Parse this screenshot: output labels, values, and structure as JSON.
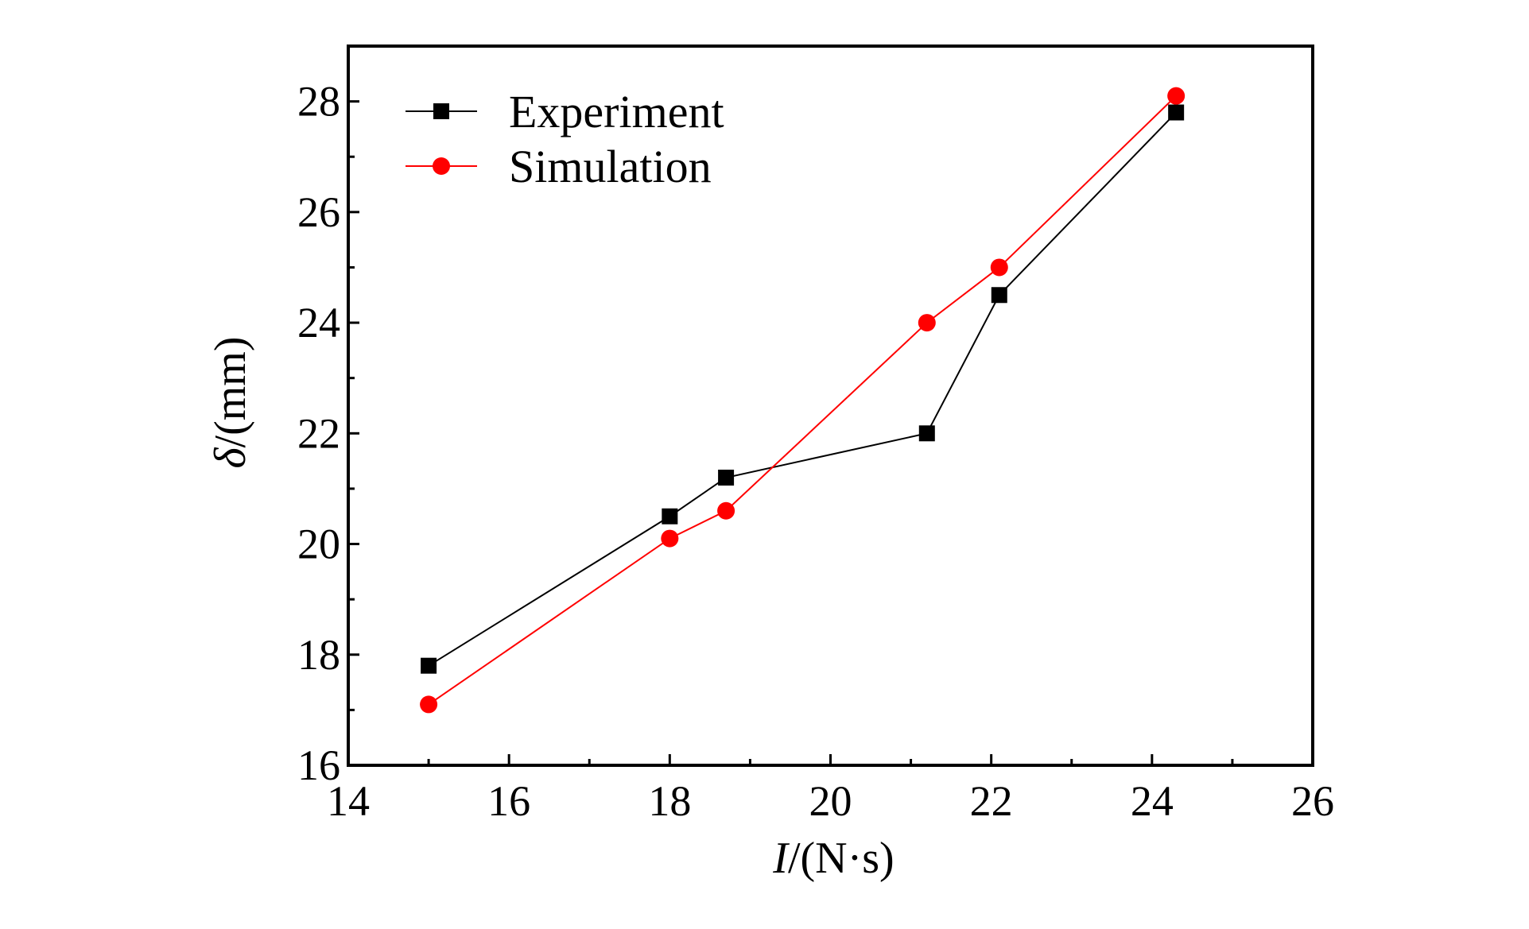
{
  "chart_data": {
    "type": "line",
    "title": "",
    "xlabel": {
      "var": "I",
      "unit": "/(N·s)"
    },
    "ylabel": {
      "var": "δ",
      "unit": "/(mm)"
    },
    "xlim": [
      14,
      26
    ],
    "ylim": [
      16,
      29
    ],
    "xticks": [
      14,
      16,
      18,
      20,
      22,
      24,
      26
    ],
    "yticks": [
      16,
      18,
      20,
      22,
      24,
      26,
      28
    ],
    "xminor_step": 1,
    "yminor_step": 1,
    "grid": false,
    "legend_position": "top-left",
    "series": [
      {
        "name": "Experiment",
        "color": "#000000",
        "marker": "square",
        "points": [
          [
            15.0,
            17.8
          ],
          [
            18.0,
            20.5
          ],
          [
            18.7,
            21.2
          ],
          [
            21.2,
            22.0
          ],
          [
            22.1,
            24.5
          ],
          [
            24.3,
            27.8
          ]
        ]
      },
      {
        "name": "Simulation",
        "color": "#ff0000",
        "marker": "circle",
        "points": [
          [
            15.0,
            17.1
          ],
          [
            18.0,
            20.1
          ],
          [
            18.7,
            20.6
          ],
          [
            21.2,
            24.0
          ],
          [
            22.1,
            25.0
          ],
          [
            24.3,
            28.1
          ]
        ]
      }
    ]
  }
}
